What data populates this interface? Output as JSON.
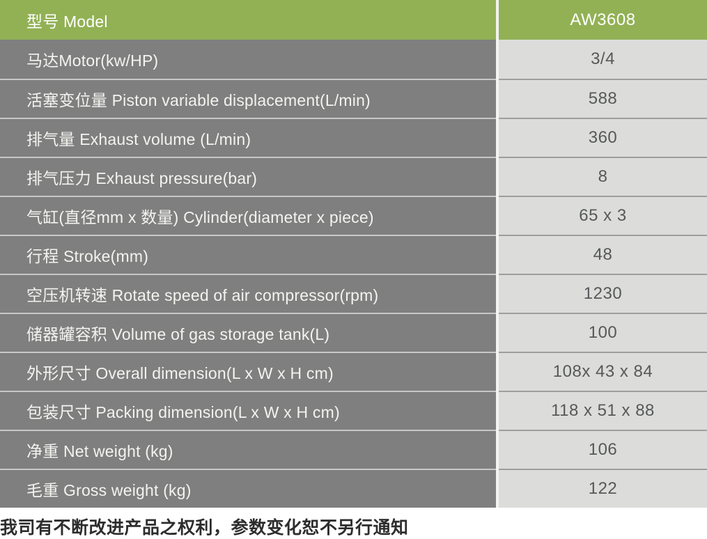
{
  "colors": {
    "header_bg": "#92B155",
    "header_text": "#FFFFFF",
    "label_bg": "#7F7F7F",
    "label_text": "#F3F3F0",
    "value_bg": "#DCDDDA",
    "value_text": "#57585A",
    "column_divider": "#F3F3F1",
    "row_divider_label": "#C8C8C8",
    "row_divider_value": "#9E9E9E",
    "footer_text": "#2D2D2D"
  },
  "table": {
    "header": {
      "label": "型号 Model",
      "value": "AW3608"
    },
    "rows": [
      {
        "label": "马达Motor(kw/HP)",
        "value": "3/4"
      },
      {
        "label": "活塞变位量 Piston variable displacement(L/min)",
        "value": "588"
      },
      {
        "label": "排气量 Exhaust volume (L/min)",
        "value": "360"
      },
      {
        "label": "排气压力 Exhaust pressure(bar)",
        "value": "8"
      },
      {
        "label": "气缸(直径mm x 数量) Cylinder(diameter x piece)",
        "value": "65 x 3"
      },
      {
        "label": "行程 Stroke(mm)",
        "value": "48"
      },
      {
        "label": "空压机转速 Rotate speed of air compressor(rpm)",
        "value": "1230"
      },
      {
        "label": "储器罐容积 Volume of gas storage tank(L)",
        "value": "100"
      },
      {
        "label": "外形尺寸 Overall dimension(L x W x H cm)",
        "value": "108x 43 x 84"
      },
      {
        "label": "包装尺寸 Packing dimension(L x W x H cm)",
        "value": "118 x 51 x 88"
      },
      {
        "label": "净重 Net weight (kg)",
        "value": "106"
      },
      {
        "label": "毛重 Gross weight (kg)",
        "value": "122"
      }
    ]
  },
  "footer_note": "我司有不断改进产品之权利，参数变化恕不另行通知"
}
